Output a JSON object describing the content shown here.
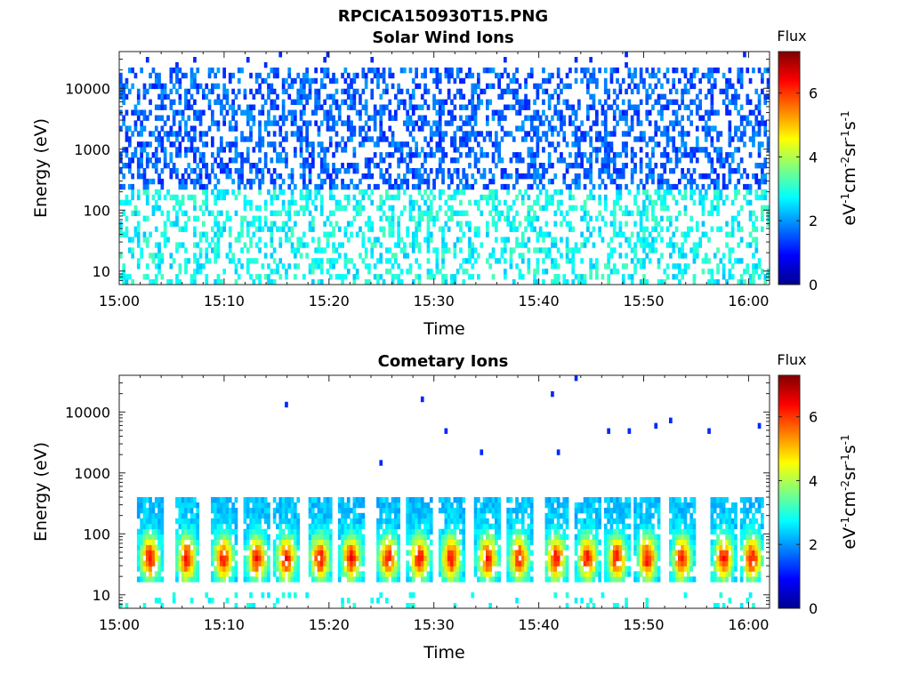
{
  "figure_title": "RPCICA150930T15.PNG",
  "chart_data": [
    {
      "type": "heatmap",
      "title": "Solar Wind Ions",
      "xlabel": "Time",
      "ylabel": "Energy (eV)",
      "x_ticks": [
        "15:00",
        "15:10",
        "15:20",
        "15:30",
        "15:40",
        "15:50",
        "16:00"
      ],
      "xlim": [
        "15:00",
        "16:02"
      ],
      "y_ticks": [
        "10",
        "100",
        "1000",
        "10000"
      ],
      "ylim": [
        6,
        40000
      ],
      "y_scale": "log",
      "colorbar": {
        "title": "Flux",
        "label": "eV-1cm-2sr-1s-1",
        "ticks": [
          "0",
          "2",
          "4",
          "6"
        ],
        "range": [
          0,
          7.3
        ],
        "colormap": "jet"
      },
      "description_pattern": "sparse low-level counts (~1-2.5) from 10 eV to 20000 eV, slightly higher (~3) below 200 eV",
      "series": [
        {
          "name": "",
          "energy_band_eV": [
            200,
            20000
          ],
          "typical_value": 1.5
        },
        {
          "name": "",
          "energy_band_eV": [
            6,
            200
          ],
          "typical_value": 3.0
        }
      ]
    },
    {
      "type": "heatmap",
      "title": "Cometary Ions",
      "xlabel": "Time",
      "ylabel": "Energy (eV)",
      "x_ticks": [
        "15:00",
        "15:10",
        "15:20",
        "15:30",
        "15:40",
        "15:50",
        "16:00"
      ],
      "xlim": [
        "15:00",
        "16:02"
      ],
      "y_ticks": [
        "10",
        "100",
        "1000",
        "10000"
      ],
      "ylim": [
        6,
        40000
      ],
      "y_scale": "log",
      "colorbar": {
        "title": "Flux",
        "label": "eV-1cm-2sr-1s-1",
        "ticks": [
          "0",
          "2",
          "4",
          "6"
        ],
        "range": [
          0,
          7.3
        ],
        "colormap": "jet"
      },
      "burst_times_min": [
        2.8,
        6.3,
        9.8,
        13,
        15.8,
        19,
        22,
        25.5,
        28.5,
        31.5,
        35,
        38,
        41.5,
        44.5,
        47.3,
        50.2,
        53.5,
        57.5,
        60.2
      ],
      "burst_energy_eV": [
        15,
        400
      ],
      "burst_peak_energy_eV": 40,
      "burst_peak_value": 5.5
    }
  ]
}
